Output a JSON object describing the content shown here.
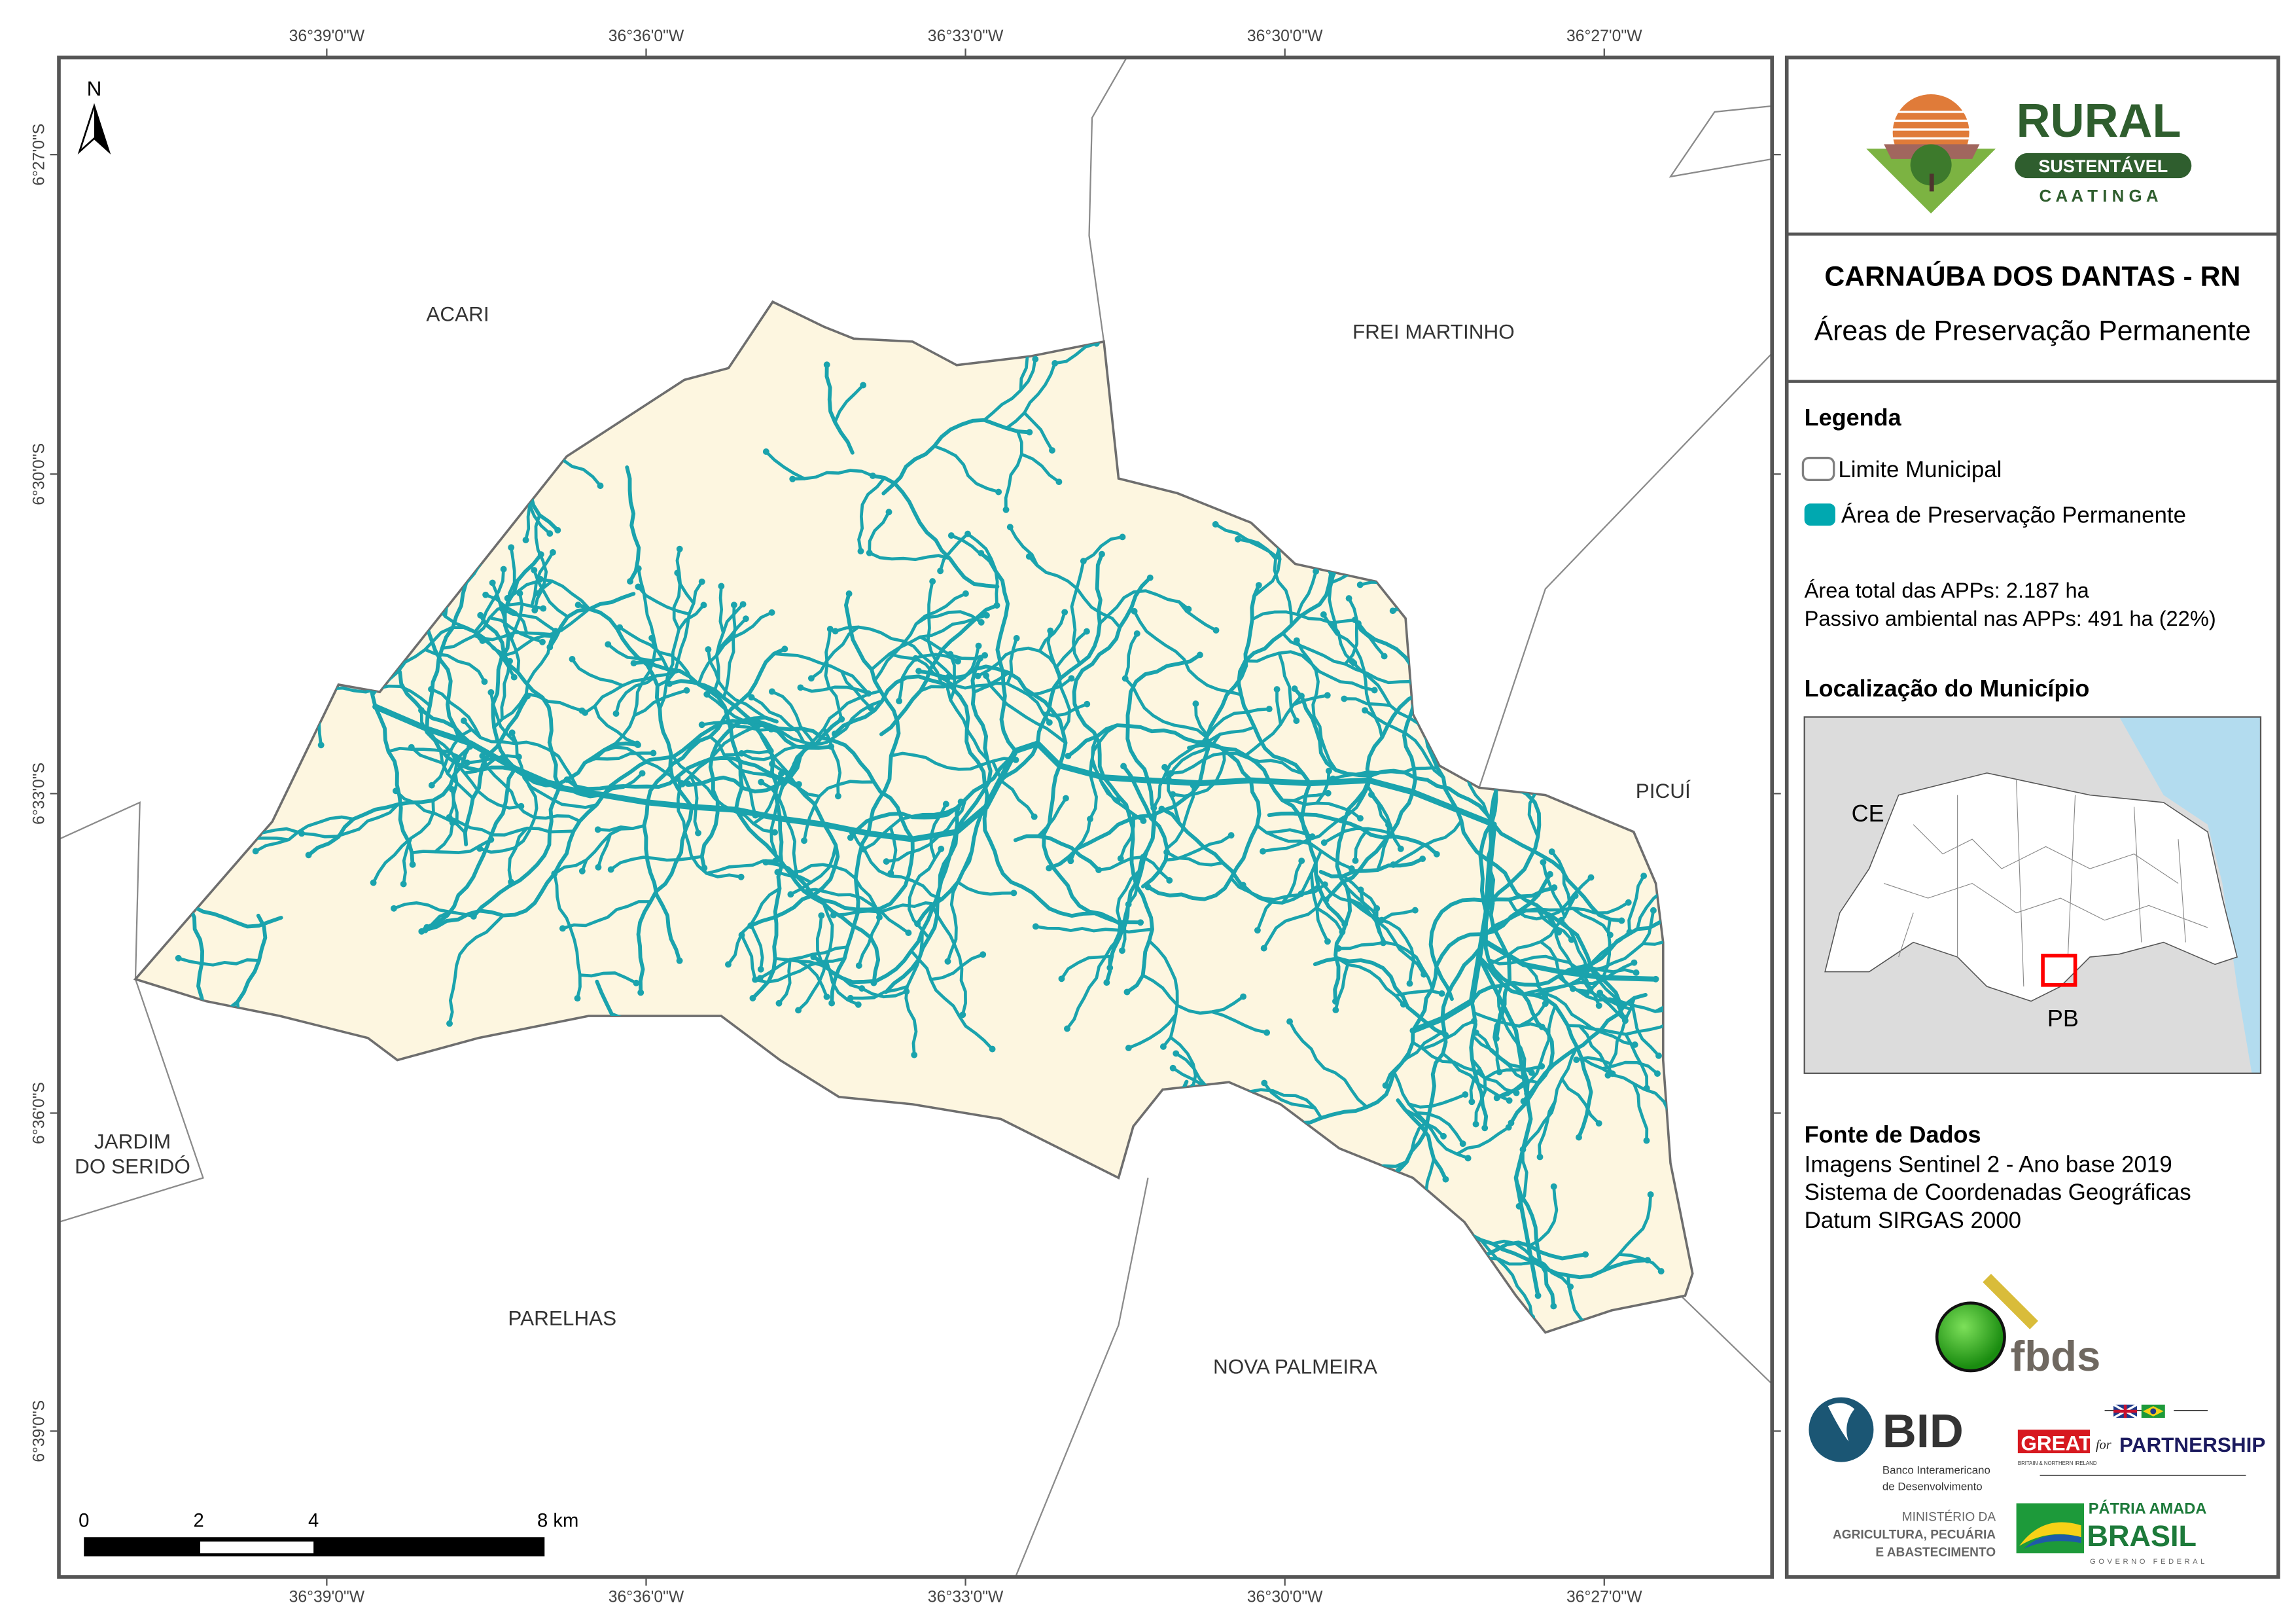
{
  "header": {
    "title": "CARNAÚBA DOS DANTAS - RN",
    "subtitle": "Áreas de Preservação Permanente"
  },
  "logo_top": {
    "line1": "RURAL",
    "line2": "SUSTENTÁVEL",
    "line3": "C A A T I N G A"
  },
  "legend": {
    "title": "Legenda",
    "items": [
      {
        "label": "Limite Municipal",
        "color": "#ffffff",
        "border": "#808080"
      },
      {
        "label": "Área de Preservação Permanente",
        "color": "#00a8b0"
      }
    ],
    "stats": [
      "Área total das APPs: 2.187 ha",
      "Passivo ambiental nas APPs: 491 ha (22%)"
    ]
  },
  "location": {
    "title": "Localização do Município",
    "labels": [
      "CE",
      "PB"
    ]
  },
  "sources": {
    "title": "Fonte de Dados",
    "lines": [
      "Imagens Sentinel 2 - Ano base 2019",
      "Sistema de Coordenadas Geográficas",
      "Datum SIRGAS 2000"
    ]
  },
  "partner_logos": {
    "fbds": "fbds",
    "bid": "BID",
    "bid_sub1": "Banco Interamericano",
    "bid_sub2": "de Desenvolvimento",
    "great": "GREAT",
    "great_sub": "BRITAIN & NORTHERN IRELAND",
    "great_for": "for",
    "partnership": "PARTNERSHIP",
    "ministerio1": "MINISTÉRIO DA",
    "ministerio2": "AGRICULTURA, PECUÁRIA",
    "ministerio3": "E ABASTECIMENTO",
    "brasil1": "PÁTRIA AMADA",
    "brasil2": "BRASIL",
    "brasil3": "GOVERNO FEDERAL"
  },
  "map": {
    "north_label": "N",
    "lon_ticks": [
      "36°39'0\"W",
      "36°36'0\"W",
      "36°33'0\"W",
      "36°30'0\"W",
      "36°27'0\"W"
    ],
    "lat_ticks": [
      "6°27'0\"S",
      "6°30'0\"S",
      "6°33'0\"S",
      "6°36'0\"S",
      "6°39'0\"S"
    ],
    "places": {
      "acari": "ACARI",
      "frei_martinho": "FREI MARTINHO",
      "picui": "PICUÍ",
      "jardim1": "JARDIM",
      "jardim2": "DO SERIDÓ",
      "parelhas": "PARELHAS",
      "nova_palmeira": "NOVA PALMEIRA"
    },
    "scale_labels": [
      "0",
      "2",
      "4",
      "8 km"
    ],
    "colors": {
      "municipality_fill": "#fdf6e0",
      "app": "#1aa3ad",
      "boundary": "#6e6e6e",
      "sea": "#b3dcef",
      "highlight": "#ff0000"
    }
  }
}
